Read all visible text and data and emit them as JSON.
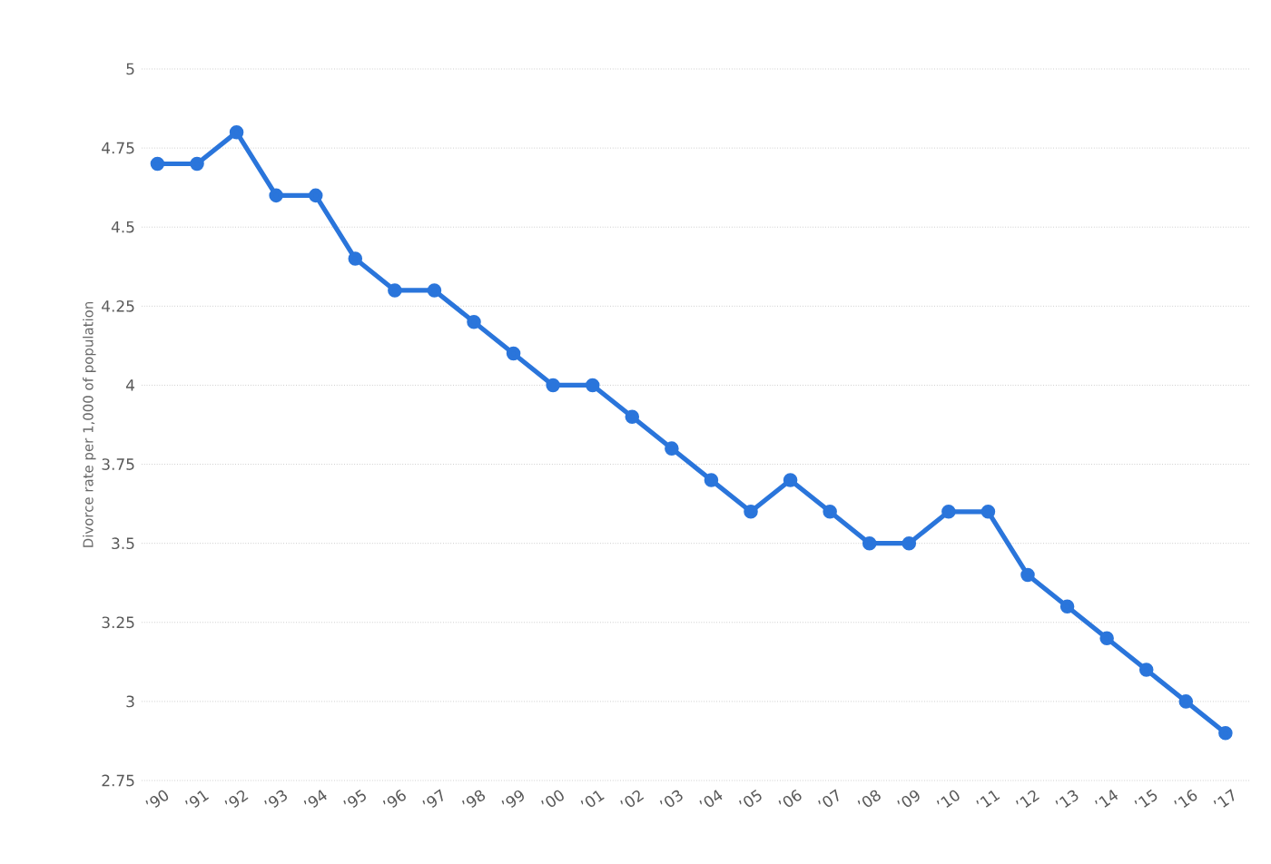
{
  "chart_data": {
    "type": "line",
    "ylabel": "Divorce rate per 1,000 of population",
    "categories": [
      "’90",
      "’91",
      "’92",
      "’93",
      "’94",
      "’95",
      "’96",
      "’97",
      "’98",
      "’99",
      "’00",
      "’01",
      "’02",
      "’03",
      "’04",
      "’05",
      "’06",
      "’07",
      "’08",
      "’09",
      "’10",
      "’11",
      "’12",
      "’13",
      "’14",
      "’15",
      "’16",
      "’17"
    ],
    "series": [
      {
        "color": "#2a75db",
        "values": [
          4.7,
          4.7,
          4.8,
          4.6,
          4.6,
          4.4,
          4.3,
          4.3,
          4.2,
          4.1,
          4.0,
          4.0,
          3.9,
          3.8,
          3.7,
          3.6,
          3.7,
          3.6,
          3.5,
          3.5,
          3.6,
          3.6,
          3.4,
          3.3,
          3.2,
          3.1,
          3.0,
          2.9
        ]
      }
    ],
    "ylim": [
      2.75,
      5
    ],
    "yticks": [
      2.75,
      3,
      3.25,
      3.5,
      3.75,
      4,
      4.25,
      4.5,
      4.75,
      5
    ],
    "grid": "y",
    "marker": "circle",
    "line_style": "solid"
  }
}
